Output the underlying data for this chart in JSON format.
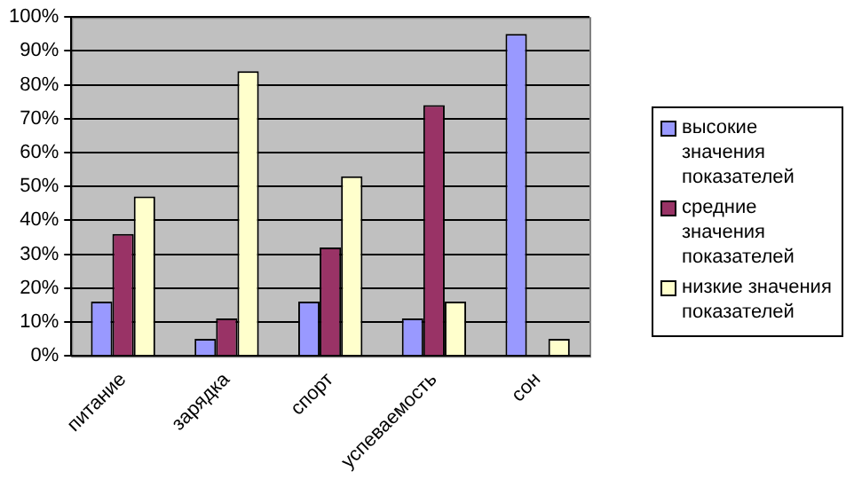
{
  "chart_data": {
    "type": "bar",
    "categories": [
      "питание",
      "зарядка",
      "спорт",
      "успеваемость",
      "сон"
    ],
    "series": [
      {
        "name": "высокие значения показателей",
        "color": "#9999ff",
        "values": [
          16,
          5,
          16,
          11,
          95
        ]
      },
      {
        "name": "средние значения показателей",
        "color": "#993366",
        "values": [
          36,
          11,
          32,
          74,
          0
        ]
      },
      {
        "name": "низкие значения показателей",
        "color": "#ffffcc",
        "values": [
          47,
          84,
          53,
          16,
          5
        ]
      }
    ],
    "ylim": [
      0,
      100
    ],
    "yticks": [
      {
        "value": 0,
        "label": "0%"
      },
      {
        "value": 10,
        "label": "10%"
      },
      {
        "value": 20,
        "label": "20%"
      },
      {
        "value": 30,
        "label": "30%"
      },
      {
        "value": 40,
        "label": "40%"
      },
      {
        "value": 50,
        "label": "50%"
      },
      {
        "value": 60,
        "label": "60%"
      },
      {
        "value": 70,
        "label": "70%"
      },
      {
        "value": 80,
        "label": "80%"
      },
      {
        "value": 90,
        "label": "90%"
      },
      {
        "value": 100,
        "label": "100%"
      }
    ],
    "grid": "y",
    "legend": "right"
  }
}
